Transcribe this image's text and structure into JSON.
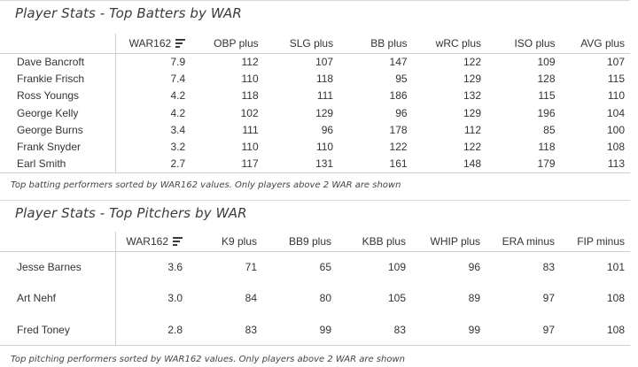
{
  "batters": {
    "title": "Player Stats - Top Batters by WAR",
    "columns": [
      "WAR162",
      "OBP plus",
      "SLG plus",
      "BB plus",
      "wRC plus",
      "ISO plus",
      "AVG plus"
    ],
    "rows": [
      {
        "name": "Dave Bancroft",
        "values": [
          "7.9",
          "112",
          "107",
          "147",
          "122",
          "109",
          "107"
        ]
      },
      {
        "name": "Frankie Frisch",
        "values": [
          "7.4",
          "110",
          "118",
          "95",
          "129",
          "128",
          "115"
        ]
      },
      {
        "name": "Ross Youngs",
        "values": [
          "4.2",
          "118",
          "111",
          "186",
          "132",
          "115",
          "110"
        ]
      },
      {
        "name": "George Kelly",
        "values": [
          "4.2",
          "102",
          "129",
          "96",
          "129",
          "196",
          "104"
        ]
      },
      {
        "name": "George Burns",
        "values": [
          "3.4",
          "111",
          "96",
          "178",
          "112",
          "85",
          "100"
        ]
      },
      {
        "name": "Frank Snyder",
        "values": [
          "3.2",
          "110",
          "110",
          "122",
          "122",
          "118",
          "108"
        ]
      },
      {
        "name": "Earl Smith",
        "values": [
          "2.7",
          "117",
          "131",
          "161",
          "148",
          "179",
          "113"
        ]
      }
    ],
    "caption": "Top batting performers sorted by WAR162 values. Only players above 2 WAR are shown"
  },
  "pitchers": {
    "title": "Player Stats - Top Pitchers by WAR",
    "columns": [
      "WAR162",
      "K9 plus",
      "BB9 plus",
      "KBB plus",
      "WHIP plus",
      "ERA minus",
      "FIP minus"
    ],
    "rows": [
      {
        "name": "Jesse Barnes",
        "values": [
          "3.6",
          "71",
          "65",
          "109",
          "96",
          "83",
          "101"
        ]
      },
      {
        "name": "Art Nehf",
        "values": [
          "3.0",
          "84",
          "80",
          "105",
          "89",
          "97",
          "108"
        ]
      },
      {
        "name": "Fred Toney",
        "values": [
          "2.8",
          "83",
          "99",
          "83",
          "99",
          "97",
          "108"
        ]
      }
    ],
    "caption": "Top pitching performers sorted by WAR162 values. Only players above 2 WAR are shown"
  },
  "icons": {
    "sort": "sort-descending-icon"
  }
}
